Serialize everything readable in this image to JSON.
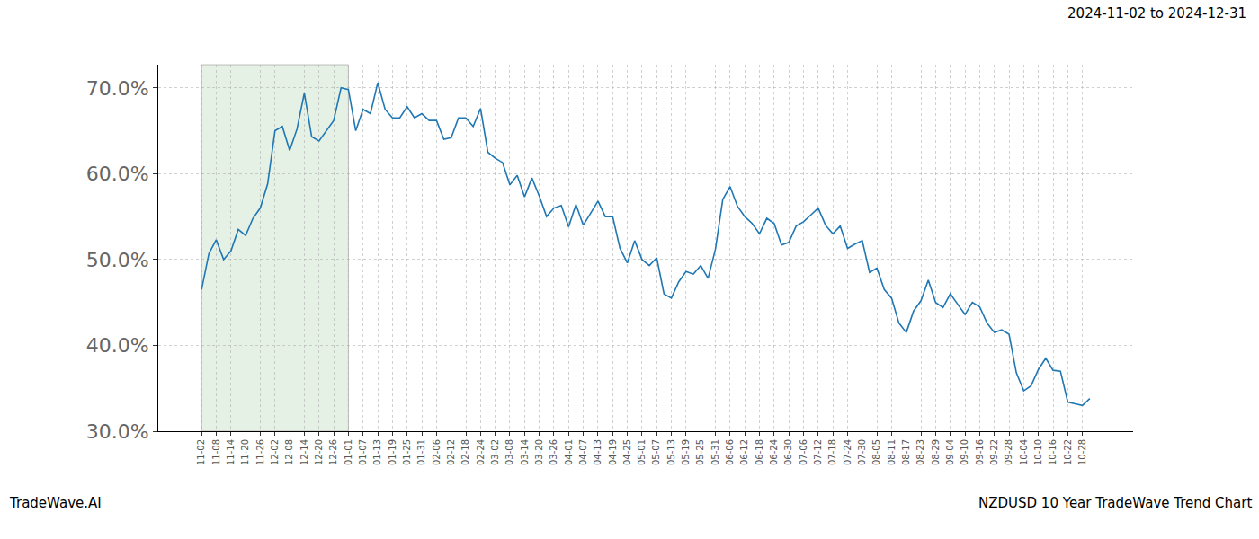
{
  "chart_data": {
    "type": "line",
    "title": "2024-11-02 to 2024-12-31",
    "source": "TradeWave.AI",
    "subtitle": "NZDUSD 10 Year TradeWave Trend Chart",
    "color": "#1f77b4",
    "grid": true,
    "highlight": {
      "from": "11-02",
      "to": "01-01"
    },
    "categories": [
      "11-02",
      null,
      "11-08",
      null,
      "11-14",
      null,
      "11-20",
      null,
      "11-26",
      null,
      "12-02",
      null,
      "12-08",
      null,
      "12-14",
      null,
      "12-20",
      null,
      "12-26",
      null,
      "01-01",
      null,
      "01-07",
      null,
      "01-13",
      null,
      "01-19",
      null,
      "01-25",
      null,
      "01-31",
      null,
      "02-06",
      null,
      "02-12",
      null,
      "02-18",
      null,
      "02-24",
      null,
      "03-02",
      null,
      "03-08",
      null,
      "03-14",
      null,
      "03-20",
      null,
      "03-26",
      null,
      "04-01",
      null,
      "04-07",
      null,
      "04-13",
      null,
      "04-19",
      null,
      "04-25",
      null,
      "05-01",
      null,
      "05-07",
      null,
      "05-13",
      null,
      "05-19",
      null,
      "05-25",
      null,
      "05-31",
      null,
      "06-06",
      null,
      "06-12",
      null,
      "06-18",
      null,
      "06-24",
      null,
      "06-30",
      null,
      "07-06",
      null,
      "07-12",
      null,
      "07-18",
      null,
      "07-24",
      null,
      "07-30",
      null,
      "08-05",
      null,
      "08-11",
      null,
      "08-17",
      null,
      "08-23",
      null,
      "08-29",
      null,
      "09-04",
      null,
      "09-10",
      null,
      "09-16",
      null,
      "09-22",
      null,
      "09-28",
      null,
      "10-04",
      null,
      "10-10",
      null,
      "10-16",
      null,
      "10-22",
      null,
      "10-28",
      null
    ],
    "values": [
      46.5,
      50.7,
      52.3,
      50.0,
      51.0,
      53.5,
      52.8,
      54.8,
      56.0,
      58.8,
      65.0,
      65.5,
      62.7,
      65.2,
      69.4,
      64.3,
      63.8,
      65.0,
      66.2,
      70.0,
      69.8,
      65.0,
      67.5,
      67.0,
      70.6,
      67.5,
      66.5,
      66.5,
      67.8,
      66.5,
      67.0,
      66.2,
      66.2,
      64.0,
      64.2,
      66.5,
      66.5,
      65.5,
      67.6,
      62.5,
      61.8,
      61.3,
      58.7,
      59.8,
      57.3,
      59.5,
      57.4,
      55.0,
      56.0,
      56.3,
      53.8,
      56.4,
      54.0,
      55.4,
      56.8,
      55.0,
      55.0,
      51.3,
      49.6,
      52.2,
      50.0,
      49.3,
      50.2,
      46.0,
      45.5,
      47.4,
      48.6,
      48.3,
      49.3,
      47.8,
      51.2,
      57.0,
      58.5,
      56.2,
      55.0,
      54.2,
      53.0,
      54.8,
      54.2,
      51.7,
      52.0,
      53.9,
      54.4,
      55.2,
      56.0,
      54.0,
      53.0,
      53.9,
      51.3,
      51.8,
      52.2,
      48.5,
      49.0,
      46.5,
      45.5,
      42.6,
      41.5,
      44.0,
      45.2,
      47.6,
      45.0,
      44.4,
      46.0,
      44.8,
      43.6,
      45.0,
      44.5,
      42.6,
      41.5,
      41.8,
      41.3,
      36.8,
      34.7,
      35.3,
      37.2,
      38.5,
      37.1,
      37.0,
      33.4,
      33.2,
      33.0,
      33.8
    ],
    "xlim": [
      -5.9,
      126.9
    ],
    "ylim": [
      30,
      72.7
    ],
    "yticks": [
      {
        "value": 30,
        "label": "30.0%"
      },
      {
        "value": 40,
        "label": "40.0%"
      },
      {
        "value": 50,
        "label": "50.0%"
      },
      {
        "value": 60,
        "label": "60.0%"
      },
      {
        "value": 70,
        "label": "70.0%"
      }
    ]
  }
}
